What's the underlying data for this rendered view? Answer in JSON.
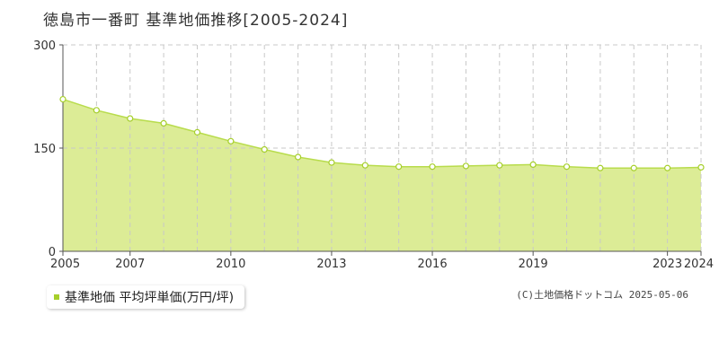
{
  "title": "徳島市一番町 基準地価推移[2005-2024]",
  "legend_label": "基準地価 平均坪単価(万円/坪)",
  "copyright": "(C)土地価格ドットコム 2025-05-06",
  "colors": {
    "area_fill": "#dcec96",
    "line": "#b8dc4c",
    "marker_fill": "#ffffff",
    "marker_stroke": "#a6cf2b",
    "legend_swatch": "#a6cf2b",
    "grid": "#c8c8c8",
    "axis": "#555555"
  },
  "chart_data": {
    "type": "area",
    "x": [
      2005,
      2006,
      2007,
      2008,
      2009,
      2010,
      2011,
      2012,
      2013,
      2014,
      2015,
      2016,
      2017,
      2018,
      2019,
      2020,
      2021,
      2022,
      2023,
      2024
    ],
    "series": [
      {
        "name": "基準地価 平均坪単価(万円/坪)",
        "values": [
          221,
          205,
          193,
          186,
          173,
          160,
          148,
          137,
          129,
          125,
          123,
          123,
          124,
          125,
          126,
          123,
          121,
          121,
          121,
          122
        ]
      }
    ],
    "xticks": [
      2005,
      2007,
      2010,
      2013,
      2016,
      2019,
      2023,
      2024
    ],
    "yticks": [
      0,
      150,
      300
    ],
    "xlim": [
      2005,
      2024
    ],
    "ylim": [
      0,
      300
    ],
    "grid": true,
    "legend_position": "bottom-left"
  }
}
